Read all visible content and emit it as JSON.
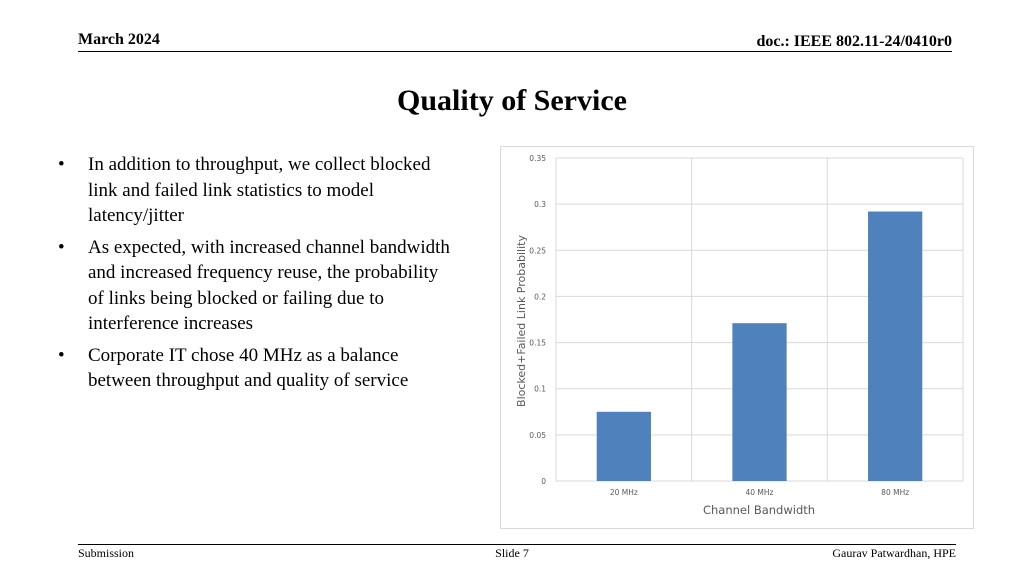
{
  "header": {
    "date": "March 2024",
    "doc": "doc.: IEEE 802.11-24/0410r0"
  },
  "title": "Quality of Service",
  "bullets": [
    "In addition to throughput, we collect blocked link and failed link statistics to model latency/jitter",
    "As expected, with increased channel bandwidth and increased frequency reuse, the probability of links being blocked or failing due to interference increases",
    "Corporate IT chose 40 MHz as a balance between throughput and quality of service"
  ],
  "bullet_glyph": "•",
  "chart_data": {
    "type": "bar",
    "categories": [
      "20 MHz",
      "40 MHz",
      "80 MHz"
    ],
    "values": [
      0.075,
      0.171,
      0.292
    ],
    "xlabel": "Channel Bandwidth",
    "ylabel": "Blocked+Failed Link Probability",
    "ylim": [
      0,
      0.35
    ],
    "yticks": [
      0,
      0.05,
      0.1,
      0.15,
      0.2,
      0.25,
      0.3,
      0.35
    ],
    "ytick_labels": [
      "0",
      "0.05",
      "0.1",
      "0.15",
      "0.2",
      "0.25",
      "0.3",
      "0.35"
    ],
    "grid": true,
    "bar_color": "#4f81bd"
  },
  "footer": {
    "left": "Submission",
    "center": "Slide 7",
    "right": "Gaurav Patwardhan, HPE"
  }
}
